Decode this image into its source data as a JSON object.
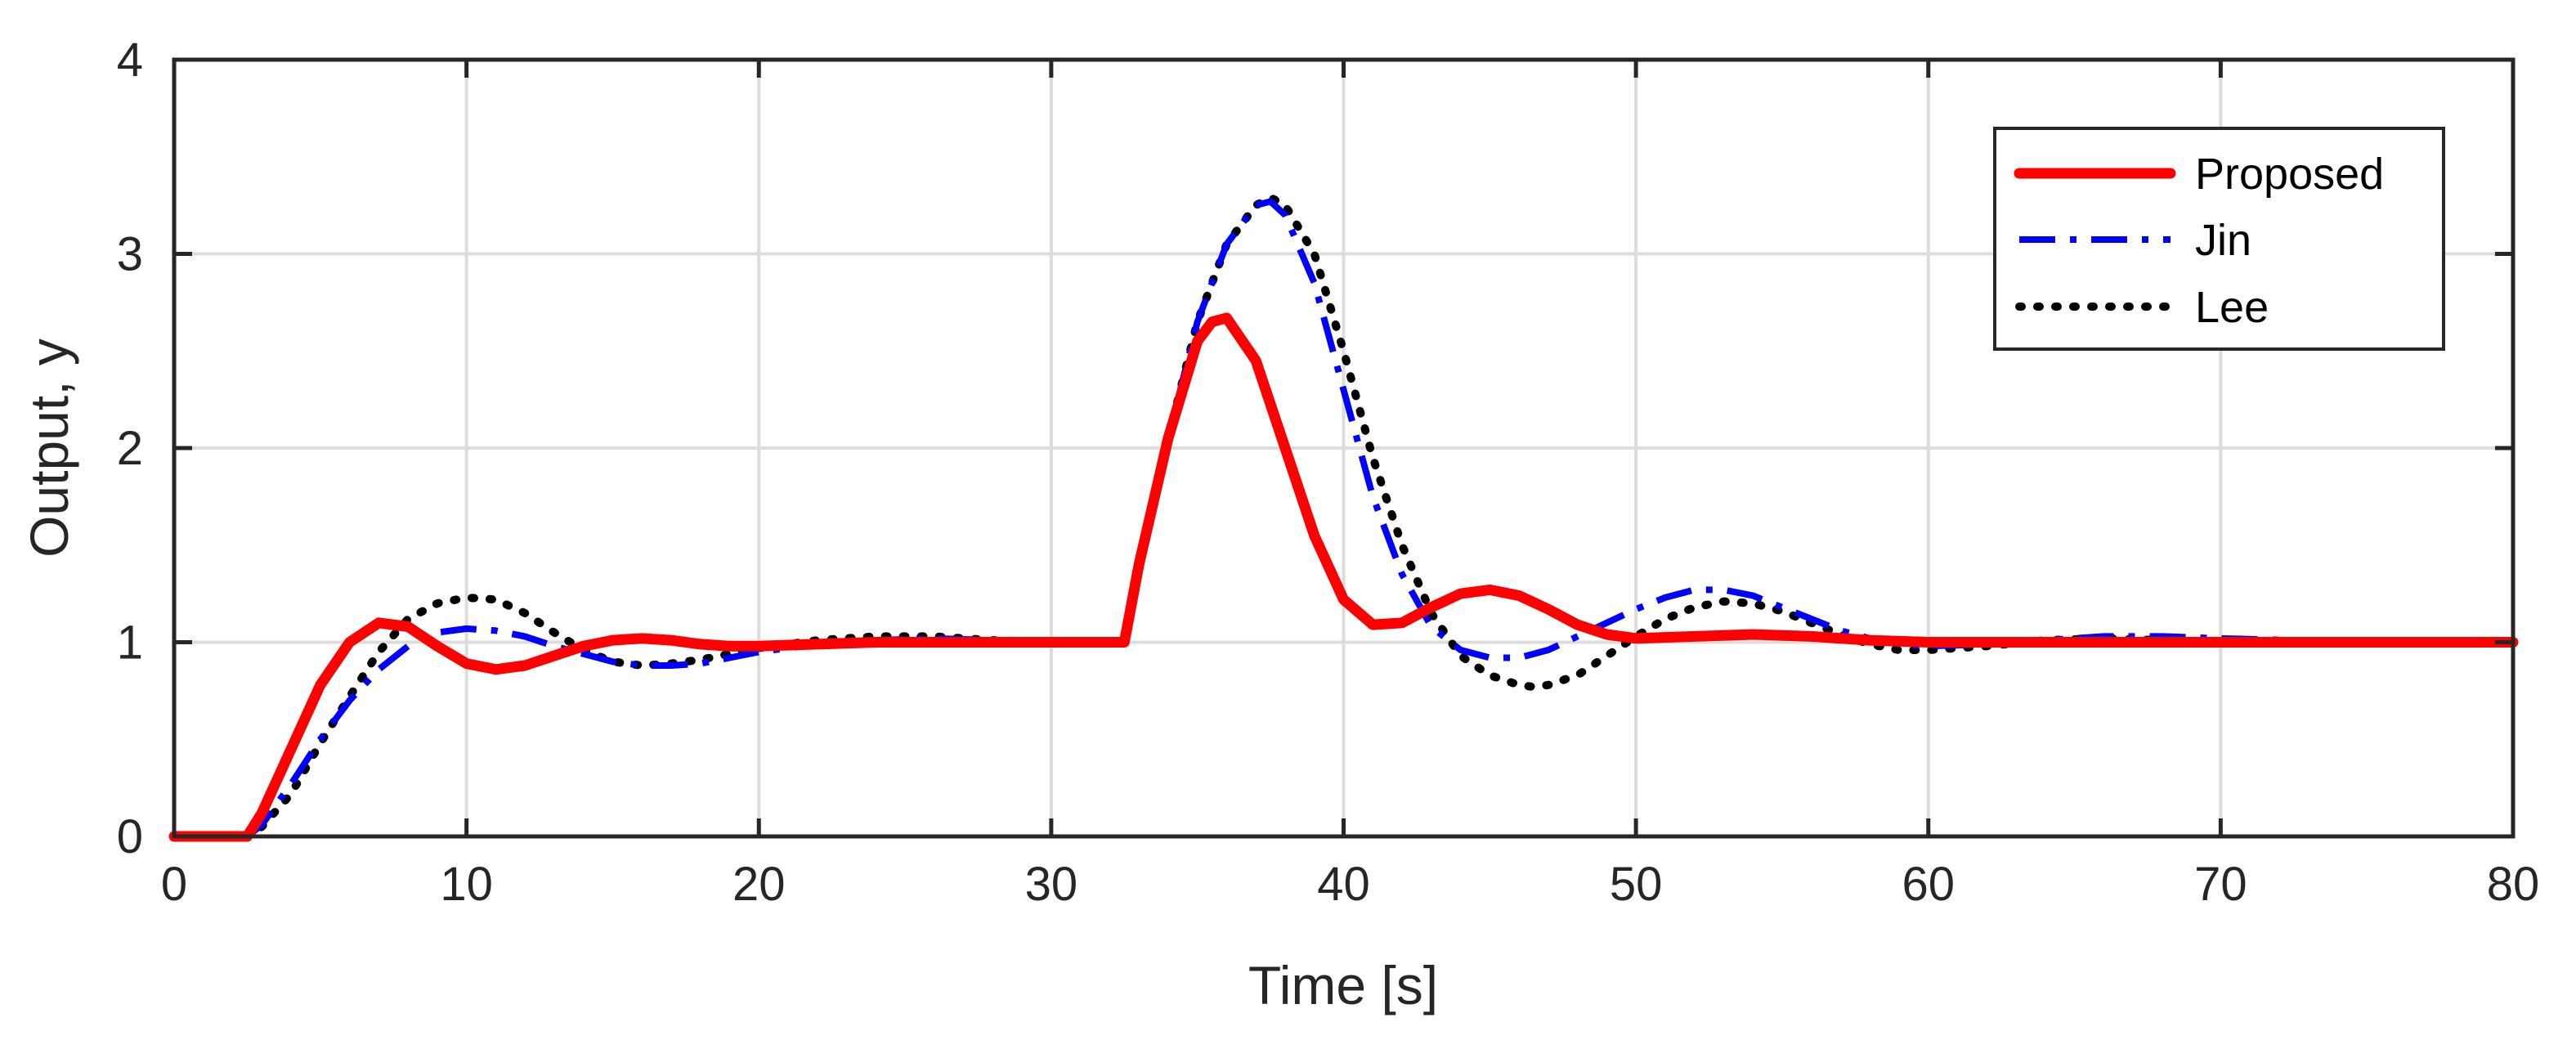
{
  "chart_data": {
    "type": "line",
    "title": "",
    "xlabel": "Time [s]",
    "ylabel": "Output, y",
    "xlim": [
      0,
      80
    ],
    "ylim": [
      0,
      4
    ],
    "xticks": [
      0,
      10,
      20,
      30,
      40,
      50,
      60,
      70,
      80
    ],
    "yticks": [
      0,
      1,
      2,
      3,
      4
    ],
    "grid": true,
    "legend_position": "top-right",
    "series": [
      {
        "name": "Proposed",
        "color": "#ff0000",
        "style": "solid",
        "x": [
          0,
          2.5,
          3,
          4,
          5,
          6,
          7,
          8,
          9,
          10,
          11,
          12,
          13,
          14,
          15,
          16,
          17,
          18,
          19,
          20,
          22,
          24,
          26,
          28,
          30,
          32.5,
          33,
          34,
          35,
          35.5,
          36,
          37,
          38,
          39,
          40,
          41,
          42,
          43,
          44,
          45,
          46,
          47,
          48,
          49,
          50,
          52,
          54,
          56,
          58,
          60,
          65,
          70,
          75,
          80
        ],
        "y": [
          0,
          0,
          0.12,
          0.45,
          0.78,
          1.0,
          1.1,
          1.08,
          0.98,
          0.89,
          0.86,
          0.88,
          0.93,
          0.98,
          1.01,
          1.02,
          1.01,
          0.99,
          0.98,
          0.98,
          0.99,
          1.0,
          1.0,
          1.0,
          1.0,
          1.0,
          1.4,
          2.05,
          2.55,
          2.65,
          2.67,
          2.45,
          2.0,
          1.55,
          1.22,
          1.09,
          1.1,
          1.18,
          1.25,
          1.27,
          1.24,
          1.17,
          1.09,
          1.04,
          1.02,
          1.03,
          1.04,
          1.03,
          1.01,
          1.0,
          1.0,
          1.0,
          1.0,
          1.0
        ]
      },
      {
        "name": "Jin",
        "color": "#0000ff",
        "style": "dashdot",
        "x": [
          0,
          2.5,
          3,
          4,
          5,
          6,
          7,
          8,
          9,
          10,
          11,
          12,
          13,
          14,
          15,
          16,
          17,
          18,
          19,
          20,
          22,
          24,
          26,
          28,
          30,
          32.5,
          33,
          34,
          35,
          36,
          37,
          37.5,
          38,
          39,
          40,
          41,
          42,
          43,
          44,
          45,
          46,
          47,
          48,
          49,
          50,
          51,
          52,
          53,
          54,
          55,
          56,
          57,
          58,
          59,
          60,
          62,
          64,
          66,
          68,
          70,
          75,
          80
        ],
        "y": [
          0,
          0,
          0.06,
          0.27,
          0.5,
          0.7,
          0.86,
          0.98,
          1.05,
          1.07,
          1.06,
          1.03,
          0.98,
          0.94,
          0.9,
          0.88,
          0.88,
          0.89,
          0.92,
          0.95,
          0.99,
          1.01,
          1.02,
          1.01,
          1.0,
          1.0,
          1.4,
          2.05,
          2.65,
          3.05,
          3.25,
          3.27,
          3.2,
          2.85,
          2.3,
          1.75,
          1.35,
          1.08,
          0.96,
          0.92,
          0.92,
          0.96,
          1.03,
          1.1,
          1.17,
          1.23,
          1.27,
          1.27,
          1.24,
          1.18,
          1.12,
          1.06,
          1.02,
          0.99,
          0.98,
          0.99,
          1.01,
          1.03,
          1.03,
          1.02,
          1.0,
          1.0
        ]
      },
      {
        "name": "Lee",
        "color": "#000000",
        "style": "dotted",
        "x": [
          0,
          2.5,
          3,
          4,
          5,
          6,
          7,
          8,
          9,
          10,
          11,
          12,
          13,
          14,
          15,
          16,
          17,
          18,
          19,
          20,
          22,
          24,
          26,
          28,
          30,
          32.5,
          33,
          34,
          35,
          36,
          37,
          37.5,
          38,
          39,
          40,
          41,
          42,
          43,
          44,
          45,
          46,
          46.5,
          47,
          48,
          49,
          50,
          51,
          52,
          53,
          54,
          55,
          56,
          57,
          58,
          59,
          60,
          62,
          64,
          66,
          68,
          70,
          75,
          80
        ],
        "y": [
          0,
          0,
          0.05,
          0.22,
          0.48,
          0.72,
          0.95,
          1.12,
          1.2,
          1.23,
          1.22,
          1.15,
          1.05,
          0.96,
          0.9,
          0.88,
          0.89,
          0.91,
          0.94,
          0.97,
          1.01,
          1.03,
          1.03,
          1.01,
          1.0,
          1.0,
          1.4,
          2.05,
          2.65,
          3.05,
          3.25,
          3.29,
          3.25,
          3.0,
          2.5,
          1.95,
          1.5,
          1.15,
          0.93,
          0.83,
          0.78,
          0.77,
          0.78,
          0.83,
          0.93,
          1.03,
          1.12,
          1.18,
          1.21,
          1.2,
          1.16,
          1.1,
          1.04,
          0.99,
          0.96,
          0.96,
          0.98,
          1.01,
          1.02,
          1.01,
          1.0,
          1.0,
          1.0
        ]
      }
    ]
  }
}
